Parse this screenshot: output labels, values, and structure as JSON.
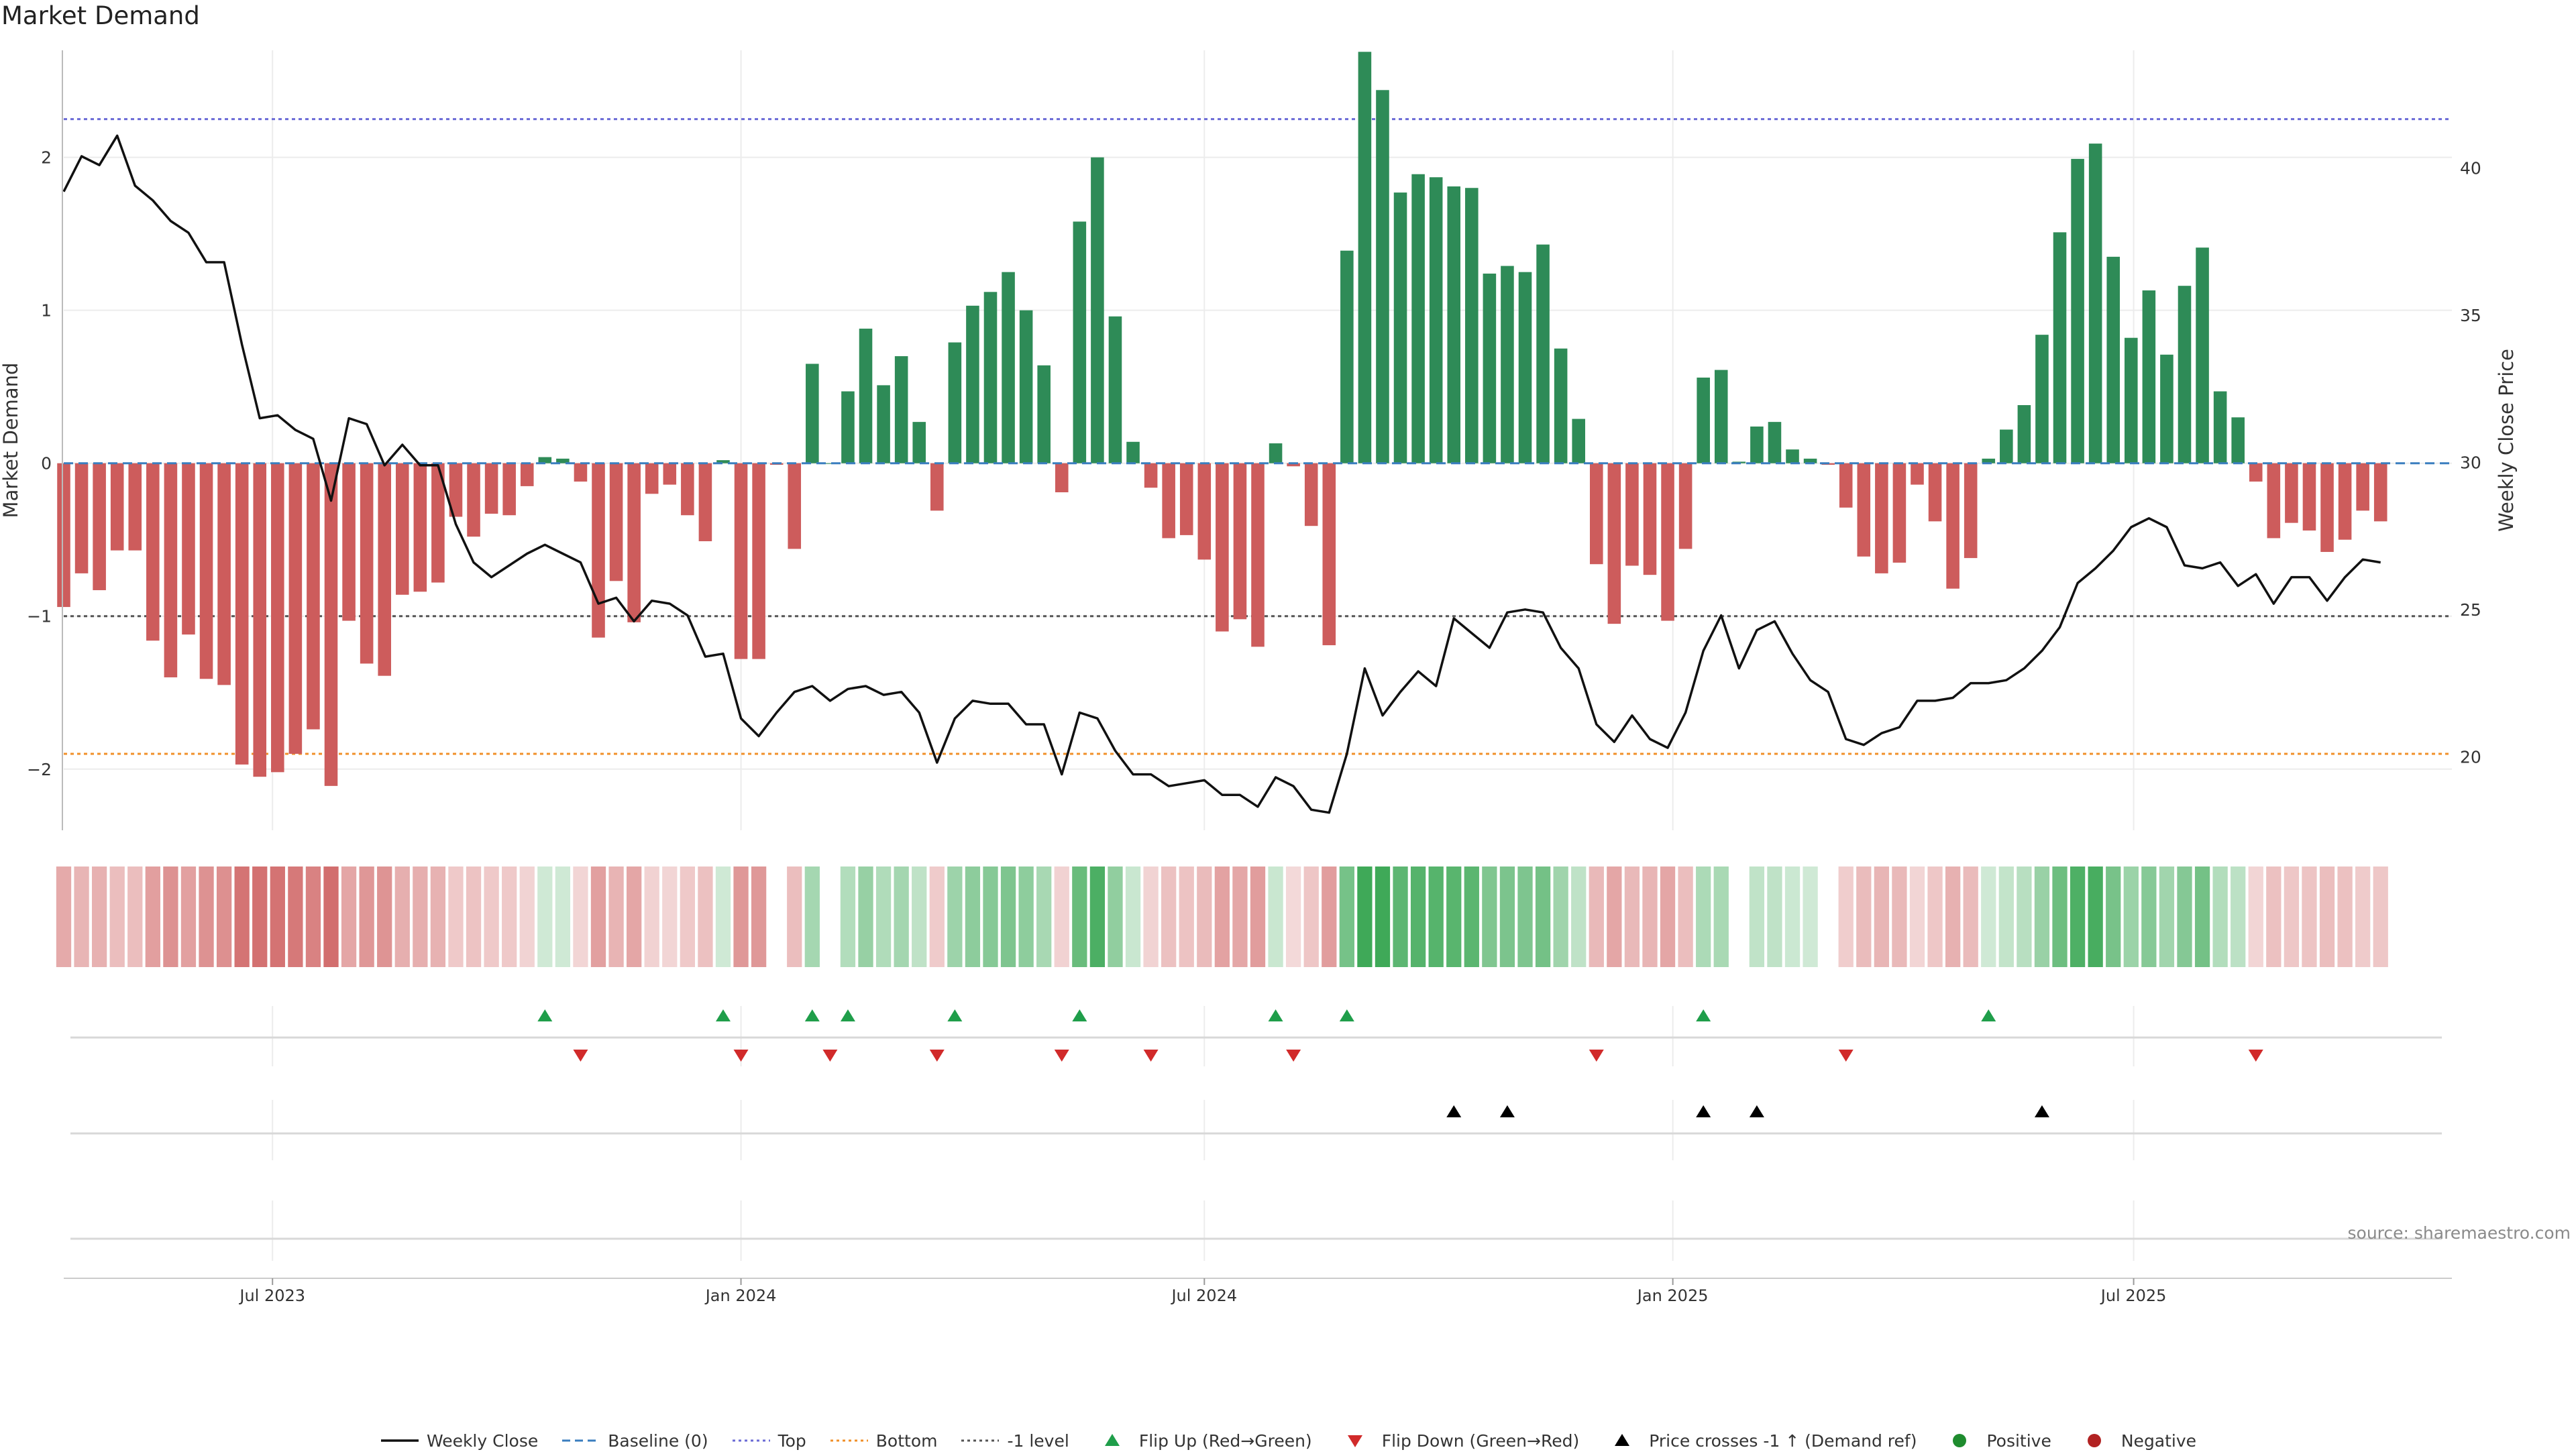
{
  "chart_data": {
    "type": "bar",
    "title": "Market Demand",
    "ylabel": "Market Demand",
    "y2label": "Weekly Close Price",
    "ylim": [
      -2.4,
      2.7
    ],
    "y2lim": [
      17.5,
      44.0
    ],
    "yticks": [
      -2,
      -1,
      0,
      1,
      2
    ],
    "y2ticks": [
      20,
      25,
      30,
      35,
      40
    ],
    "x_start": "2023-04-10",
    "x_end": "2025-11-03",
    "x_step_days": 7,
    "date_ticks": [
      {
        "date": "2023-07-01",
        "label": "Jul 2023"
      },
      {
        "date": "2024-01-01",
        "label": "Jan 2024"
      },
      {
        "date": "2024-07-01",
        "label": "Jul 2024"
      },
      {
        "date": "2025-01-01",
        "label": "Jan 2025"
      },
      {
        "date": "2025-07-01",
        "label": "Jul 2025"
      }
    ],
    "reference_lines": [
      {
        "name": "Top",
        "value": 2.25,
        "color": "#6b6bd6"
      },
      {
        "name": "Bottom",
        "value": -1.9,
        "color": "#f0902a"
      },
      {
        "name": "-1 level",
        "value": -1.0,
        "color": "#555555"
      }
    ],
    "series": [
      {
        "name": "Market Demand",
        "values": [
          -0.94,
          -0.72,
          -0.83,
          -0.57,
          -0.57,
          -1.16,
          -1.4,
          -1.12,
          -1.41,
          -1.45,
          -1.97,
          -2.05,
          -2.02,
          -1.9,
          -1.74,
          -2.11,
          -1.03,
          -1.31,
          -1.39,
          -0.86,
          -0.84,
          -0.78,
          -0.35,
          -0.48,
          -0.33,
          -0.34,
          -0.15,
          0.04,
          0.03,
          -0.12,
          -1.14,
          -0.77,
          -1.04,
          -0.2,
          -0.14,
          -0.34,
          -0.51,
          0.02,
          -1.28,
          -1.28,
          -0.01,
          -0.56,
          0.65,
          0.0,
          0.47,
          0.88,
          0.51,
          0.7,
          0.27,
          -0.31,
          0.79,
          1.03,
          1.12,
          1.25,
          1.0,
          0.64,
          -0.19,
          1.58,
          2.0,
          0.96,
          0.14,
          -0.16,
          -0.49,
          -0.47,
          -0.63,
          -1.1,
          -1.02,
          -1.2,
          0.13,
          -0.02,
          -0.41,
          -1.19,
          1.39,
          2.69,
          2.44,
          1.77,
          1.89,
          1.87,
          1.81,
          1.8,
          1.24,
          1.29,
          1.25,
          1.43,
          0.75,
          0.29,
          -0.66,
          -1.05,
          -0.67,
          -0.73,
          -1.03,
          -0.56,
          0.56,
          0.61,
          0.01,
          0.24,
          0.27,
          0.09,
          0.03,
          -0.01,
          -0.29,
          -0.61,
          -0.72,
          -0.65,
          -0.14,
          -0.38,
          -0.82,
          -0.62,
          0.03,
          0.22,
          0.38,
          0.84,
          1.51,
          1.99,
          2.09,
          1.35,
          0.82,
          1.13,
          0.71,
          1.16,
          1.41,
          0.47,
          0.3,
          -0.12,
          -0.49,
          -0.39,
          -0.44,
          -0.58,
          -0.5,
          -0.31,
          -0.38
        ]
      },
      {
        "name": "Weekly Close",
        "values": [
          39.2,
          40.4,
          40.1,
          41.1,
          39.4,
          38.9,
          38.2,
          37.8,
          36.8,
          36.8,
          34.0,
          31.5,
          31.6,
          31.1,
          30.8,
          28.7,
          31.5,
          31.3,
          29.9,
          30.6,
          29.9,
          29.9,
          27.9,
          26.6,
          26.1,
          26.5,
          26.9,
          27.2,
          26.9,
          26.6,
          25.2,
          25.4,
          24.6,
          25.3,
          25.2,
          24.8,
          23.4,
          23.5,
          21.3,
          20.7,
          21.5,
          22.2,
          22.4,
          21.9,
          22.3,
          22.4,
          22.1,
          22.2,
          21.5,
          19.8,
          21.3,
          21.9,
          21.8,
          21.8,
          21.1,
          21.1,
          19.4,
          21.5,
          21.3,
          20.2,
          19.4,
          19.4,
          19.0,
          19.1,
          19.2,
          18.7,
          18.7,
          18.3,
          19.3,
          19.0,
          18.2,
          18.1,
          20.1,
          23.0,
          21.4,
          22.2,
          22.9,
          22.4,
          24.7,
          24.2,
          23.7,
          24.9,
          25.0,
          24.9,
          23.7,
          23.0,
          21.1,
          20.5,
          21.4,
          20.6,
          20.3,
          21.5,
          23.6,
          24.8,
          23.0,
          24.3,
          24.6,
          23.5,
          22.6,
          22.2,
          20.6,
          20.4,
          20.8,
          21.0,
          21.9,
          21.9,
          22.0,
          22.5,
          22.5,
          22.6,
          23.0,
          23.6,
          24.4,
          25.9,
          26.4,
          27.0,
          27.8,
          28.1,
          27.8,
          26.5,
          26.4,
          26.6,
          25.8,
          26.2,
          25.2,
          26.1,
          26.1,
          25.3,
          26.1,
          26.7,
          26.6
        ]
      }
    ],
    "flip_up_weeks": [
      27,
      37,
      42,
      44,
      50,
      57,
      68,
      72,
      92,
      108
    ],
    "flip_down_weeks": [
      29,
      38,
      43,
      49,
      56,
      61,
      69,
      86,
      100,
      123
    ],
    "price_cross_weeks": [
      78,
      81,
      92,
      95,
      111
    ],
    "legend": [
      {
        "label": "Weekly Close",
        "kind": "solid",
        "color": "#111111"
      },
      {
        "label": "Baseline (0)",
        "kind": "dash",
        "color": "#3a7ebf"
      },
      {
        "label": "Top",
        "kind": "dot",
        "color": "#6b6bd6"
      },
      {
        "label": "Bottom",
        "kind": "dot",
        "color": "#f0902a"
      },
      {
        "label": "-1 level",
        "kind": "dot",
        "color": "#555555"
      },
      {
        "label": "Flip Up (Red→Green)",
        "kind": "tri-up",
        "color": "#1f9e4a"
      },
      {
        "label": "Flip Down (Green→Red)",
        "kind": "tri-down",
        "color": "#d12a2a"
      },
      {
        "label": "Price crosses -1 ↑ (Demand ref)",
        "kind": "tri-up",
        "color": "#000000"
      },
      {
        "label": "Positive",
        "kind": "circle",
        "color": "#1e8c2e"
      },
      {
        "label": "Negative",
        "kind": "circle",
        "color": "#b22222"
      }
    ],
    "colors": {
      "positive_bar": "#2e8b57",
      "negative_bar": "#cd5c5c",
      "strip_positive": "#2fa24a",
      "strip_negative": "#cd5c5c",
      "price_line": "#111111"
    }
  },
  "source_note": "source: sharemaestro.com"
}
